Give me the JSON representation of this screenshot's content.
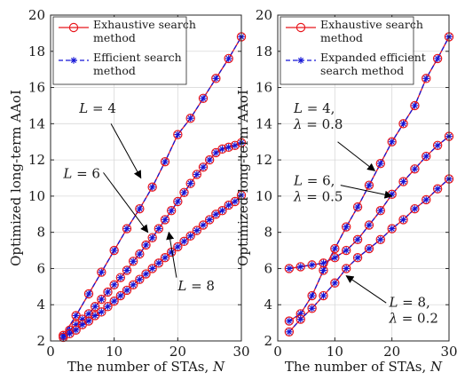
{
  "colors": {
    "exhaustive": "#e8161c",
    "efficient": "#1414d6",
    "axis": "#262626",
    "grid": "#d9d9d9",
    "annotation": "#000000"
  },
  "chart_data": [
    {
      "type": "line",
      "xlabel": "The number of STAs, N",
      "ylabel": "Optimized long-term AAoI",
      "xlim": [
        0,
        30
      ],
      "ylim": [
        2,
        20
      ],
      "xticks": [
        0,
        10,
        20,
        30
      ],
      "yticks": [
        2,
        4,
        6,
        8,
        10,
        12,
        14,
        16,
        18,
        20
      ],
      "grid": true,
      "legend_position": "top-left",
      "legend": [
        {
          "line1": "Exhaustive search",
          "line2": "method",
          "marker": "circle",
          "color_key": "exhaustive",
          "linestyle": "solid"
        },
        {
          "line1": "Efficient search",
          "line2": "method",
          "marker": "asterisk",
          "color_key": "efficient",
          "linestyle": "dashed"
        }
      ],
      "series": [
        {
          "x": [
            2,
            4,
            6,
            8,
            10,
            12,
            14,
            16,
            18,
            20,
            22,
            24,
            26,
            28,
            30
          ],
          "y": [
            2.3,
            3.4,
            4.6,
            5.8,
            7.0,
            8.2,
            9.3,
            10.5,
            11.9,
            13.4,
            14.3,
            15.4,
            16.5,
            17.6,
            18.8
          ]
        },
        {
          "x": [
            2,
            3,
            4,
            5,
            6,
            7,
            8,
            9,
            10,
            11,
            12,
            13,
            14,
            15,
            16,
            17,
            18,
            19,
            20,
            21,
            22,
            23,
            24,
            25,
            26,
            27,
            28,
            29,
            30
          ],
          "y": [
            2.3,
            2.6,
            2.9,
            3.2,
            3.5,
            3.9,
            4.3,
            4.7,
            5.1,
            5.5,
            5.9,
            6.4,
            6.8,
            7.3,
            7.7,
            8.2,
            8.7,
            9.2,
            9.7,
            10.2,
            10.7,
            11.2,
            11.6,
            12.0,
            12.4,
            12.6,
            12.7,
            12.8,
            12.95
          ]
        },
        {
          "x": [
            2,
            3,
            4,
            5,
            6,
            7,
            8,
            9,
            10,
            11,
            12,
            13,
            14,
            15,
            16,
            17,
            18,
            19,
            20,
            21,
            22,
            23,
            24,
            25,
            26,
            27,
            28,
            29,
            30
          ],
          "y": [
            2.2,
            2.4,
            2.6,
            2.9,
            3.1,
            3.4,
            3.6,
            3.9,
            4.2,
            4.5,
            4.8,
            5.1,
            5.4,
            5.7,
            6.0,
            6.3,
            6.6,
            6.9,
            7.2,
            7.5,
            7.8,
            8.1,
            8.4,
            8.7,
            9.0,
            9.2,
            9.5,
            9.7,
            10.05
          ]
        }
      ],
      "annotations": [
        {
          "label": "L = 4",
          "text_x": 4.5,
          "text_y": 14.6,
          "arrow_to_x": 14.2,
          "arrow_to_y": 11.0
        },
        {
          "label": "L = 6",
          "text_x": 2.0,
          "text_y": 11.0,
          "arrow_to_x": 15.3,
          "arrow_to_y": 8.0
        },
        {
          "label": "L = 8",
          "text_x": 20.0,
          "text_y": 4.8,
          "arrow_to_x": 18.6,
          "arrow_to_y": 8.0
        }
      ]
    },
    {
      "type": "line",
      "xlabel": "The number of STAs, N",
      "ylabel": "Optimized long-term AAoI",
      "xlim": [
        0,
        30
      ],
      "ylim": [
        2,
        20
      ],
      "xticks": [
        0,
        10,
        20,
        30
      ],
      "yticks": [
        2,
        4,
        6,
        8,
        10,
        12,
        14,
        16,
        18,
        20
      ],
      "grid": true,
      "legend_position": "top-left",
      "legend": [
        {
          "line1": "Exhaustive search",
          "line2": "method",
          "marker": "circle",
          "color_key": "exhaustive",
          "linestyle": "solid"
        },
        {
          "line1": "Expanded efficient",
          "line2": "search method",
          "marker": "asterisk",
          "color_key": "efficient",
          "linestyle": "dashed"
        }
      ],
      "series": [
        {
          "x": [
            2,
            4,
            6,
            8,
            10,
            12,
            14,
            16,
            18,
            20,
            22,
            24,
            26,
            28,
            30
          ],
          "y": [
            3.1,
            3.5,
            4.5,
            5.9,
            7.1,
            8.3,
            9.4,
            10.6,
            11.8,
            13.0,
            14.0,
            15.0,
            16.5,
            17.6,
            18.8
          ]
        },
        {
          "x": [
            2,
            4,
            6,
            8,
            10,
            12,
            14,
            16,
            18,
            20,
            22,
            24,
            26,
            28,
            30
          ],
          "y": [
            6.0,
            6.1,
            6.2,
            6.3,
            6.6,
            7.0,
            7.6,
            8.4,
            9.2,
            10.1,
            10.8,
            11.5,
            12.2,
            12.8,
            13.3
          ]
        },
        {
          "x": [
            2,
            4,
            6,
            8,
            10,
            12,
            14,
            16,
            18,
            20,
            22,
            24,
            26,
            28,
            30
          ],
          "y": [
            2.5,
            3.2,
            3.8,
            4.5,
            5.2,
            6.0,
            6.6,
            7.1,
            7.6,
            8.2,
            8.7,
            9.3,
            9.8,
            10.4,
            10.95
          ]
        }
      ],
      "annotations": [
        {
          "line1": "L = 4,",
          "line2": "λ = 0.8",
          "text_x": 2.8,
          "text_y": 14.6,
          "arrow_to_x": 17.0,
          "arrow_to_y": 11.4
        },
        {
          "line1": "L = 6,",
          "line2": "λ = 0.5",
          "text_x": 2.8,
          "text_y": 10.6,
          "arrow_to_x": 20.0,
          "arrow_to_y": 10.0
        },
        {
          "line1": "L = 8,",
          "line2": "λ = 0.2",
          "text_x": 19.5,
          "text_y": 3.9,
          "arrow_to_x": 12.0,
          "arrow_to_y": 5.6
        }
      ]
    }
  ]
}
